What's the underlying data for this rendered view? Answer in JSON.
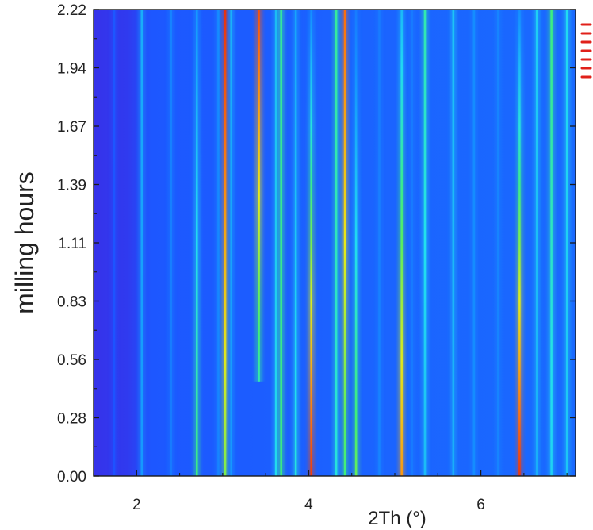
{
  "chart_data": {
    "type": "heatmap",
    "title": "",
    "xlabel": "2Th (°)",
    "ylabel": "milling hours",
    "xlim": [
      1.5,
      7.1
    ],
    "ylim": [
      0.0,
      2.22
    ],
    "x_ticks": [
      "2",
      "4",
      "6"
    ],
    "y_ticks": [
      "0.00",
      "0.28",
      "0.56",
      "0.83",
      "1.11",
      "1.39",
      "1.67",
      "1.94",
      "2.22"
    ],
    "colormap": [
      "#3a2fe6",
      "#1e4fff",
      "#1490ff",
      "#22e0f0",
      "#43f06a",
      "#eaea18",
      "#ff7a10",
      "#e31a0c"
    ],
    "background_intensity": 0.12,
    "peaks": [
      {
        "x": 1.74,
        "y_start": 0.0,
        "y_end": 2.22,
        "width": 0.015,
        "intensity_top": 0.16,
        "intensity_bottom": 0.15
      },
      {
        "x": 2.06,
        "y_start": 0.0,
        "y_end": 2.22,
        "width": 0.012,
        "intensity_top": 0.34,
        "intensity_bottom": 0.3
      },
      {
        "x": 2.4,
        "y_start": 0.0,
        "y_end": 2.22,
        "width": 0.012,
        "intensity_top": 0.26,
        "intensity_bottom": 0.24
      },
      {
        "x": 2.7,
        "y_start": 0.0,
        "y_end": 2.22,
        "width": 0.012,
        "intensity_top": 0.3,
        "intensity_bottom": 0.55
      },
      {
        "x": 2.95,
        "y_start": 0.0,
        "y_end": 2.22,
        "width": 0.01,
        "intensity_top": 0.28,
        "intensity_bottom": 0.26
      },
      {
        "x": 3.03,
        "y_start": 0.0,
        "y_end": 2.22,
        "width": 0.022,
        "intensity_top": 0.97,
        "intensity_bottom": 0.62
      },
      {
        "x": 3.1,
        "y_start": 0.0,
        "y_end": 2.22,
        "width": 0.012,
        "intensity_top": 0.35,
        "intensity_bottom": 0.3
      },
      {
        "x": 3.42,
        "y_start": 0.45,
        "y_end": 2.22,
        "width": 0.026,
        "intensity_top": 0.92,
        "intensity_bottom": 0.5
      },
      {
        "x": 3.62,
        "y_start": 0.0,
        "y_end": 2.22,
        "width": 0.01,
        "intensity_top": 0.36,
        "intensity_bottom": 0.42
      },
      {
        "x": 3.68,
        "y_start": 0.0,
        "y_end": 2.22,
        "width": 0.01,
        "intensity_top": 0.52,
        "intensity_bottom": 0.55
      },
      {
        "x": 3.85,
        "y_start": 0.0,
        "y_end": 2.22,
        "width": 0.012,
        "intensity_top": 0.32,
        "intensity_bottom": 0.45
      },
      {
        "x": 4.03,
        "y_start": 0.0,
        "y_end": 2.22,
        "width": 0.014,
        "intensity_top": 0.28,
        "intensity_bottom": 0.95
      },
      {
        "x": 4.32,
        "y_start": 0.0,
        "y_end": 2.22,
        "width": 0.022,
        "intensity_top": 0.52,
        "intensity_bottom": 0.45
      },
      {
        "x": 4.42,
        "y_start": 0.0,
        "y_end": 2.22,
        "width": 0.022,
        "intensity_top": 0.88,
        "intensity_bottom": 0.55
      },
      {
        "x": 4.55,
        "y_start": 0.0,
        "y_end": 2.22,
        "width": 0.01,
        "intensity_top": 0.24,
        "intensity_bottom": 0.6
      },
      {
        "x": 4.82,
        "y_start": 0.0,
        "y_end": 2.22,
        "width": 0.01,
        "intensity_top": 0.24,
        "intensity_bottom": 0.26
      },
      {
        "x": 5.08,
        "y_start": 0.0,
        "y_end": 2.22,
        "width": 0.012,
        "intensity_top": 0.36,
        "intensity_bottom": 0.82
      },
      {
        "x": 5.2,
        "y_start": 0.0,
        "y_end": 2.22,
        "width": 0.01,
        "intensity_top": 0.24,
        "intensity_bottom": 0.24
      },
      {
        "x": 5.35,
        "y_start": 0.0,
        "y_end": 2.22,
        "width": 0.014,
        "intensity_top": 0.5,
        "intensity_bottom": 0.36
      },
      {
        "x": 5.68,
        "y_start": 0.0,
        "y_end": 2.22,
        "width": 0.012,
        "intensity_top": 0.38,
        "intensity_bottom": 0.34
      },
      {
        "x": 5.92,
        "y_start": 0.0,
        "y_end": 2.22,
        "width": 0.01,
        "intensity_top": 0.28,
        "intensity_bottom": 0.28
      },
      {
        "x": 6.2,
        "y_start": 0.0,
        "y_end": 2.22,
        "width": 0.01,
        "intensity_top": 0.26,
        "intensity_bottom": 0.26
      },
      {
        "x": 6.45,
        "y_start": 0.0,
        "y_end": 2.22,
        "width": 0.014,
        "intensity_top": 0.28,
        "intensity_bottom": 0.96
      },
      {
        "x": 6.65,
        "y_start": 0.0,
        "y_end": 2.22,
        "width": 0.014,
        "intensity_top": 0.4,
        "intensity_bottom": 0.34
      },
      {
        "x": 6.82,
        "y_start": 0.0,
        "y_end": 2.22,
        "width": 0.018,
        "intensity_top": 0.55,
        "intensity_bottom": 0.4
      },
      {
        "x": 7.0,
        "y_start": 0.0,
        "y_end": 2.22,
        "width": 0.016,
        "intensity_top": 0.42,
        "intensity_bottom": 0.38
      }
    ],
    "marker_color": "#e0201a",
    "marker_count": 7
  }
}
